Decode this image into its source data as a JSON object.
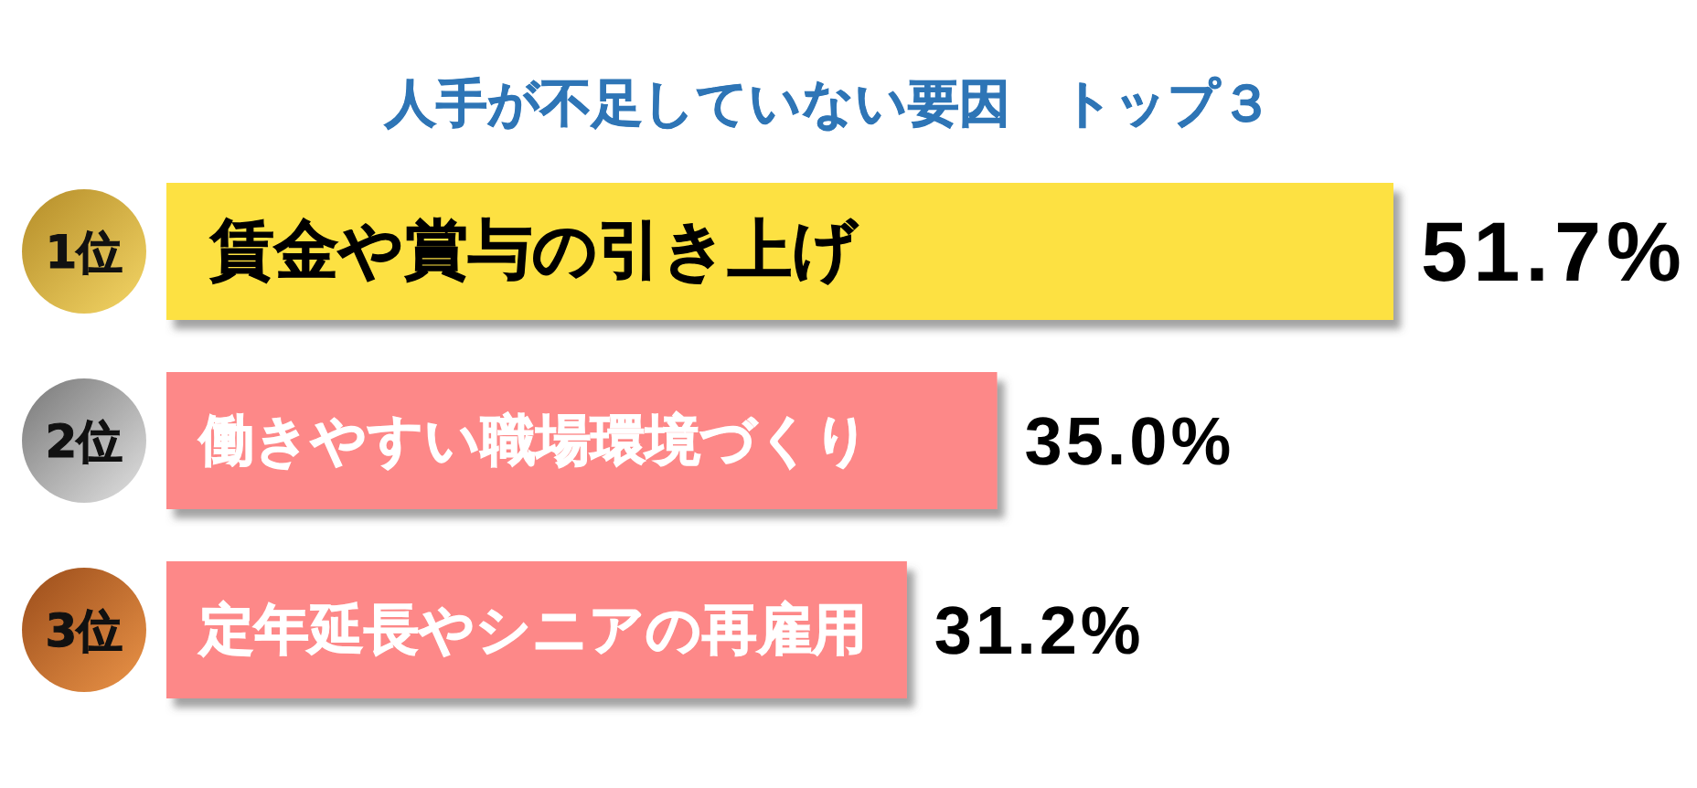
{
  "chart_data": {
    "type": "bar",
    "orientation": "horizontal",
    "title": "人手が不足していない要因　トップ３",
    "categories": [
      "賃金や賞与の引き上げ",
      "働きやすい職場環境づくり",
      "定年延長やシニアの再雇用"
    ],
    "values": [
      51.7,
      35.0,
      31.2
    ],
    "colors": [
      "#fde143",
      "#fd8888",
      "#fd8888"
    ],
    "value_labels": [
      "51.7%",
      "35.0%",
      "31.2%"
    ],
    "annotations": [
      "1位",
      "2位",
      "3位"
    ]
  }
}
